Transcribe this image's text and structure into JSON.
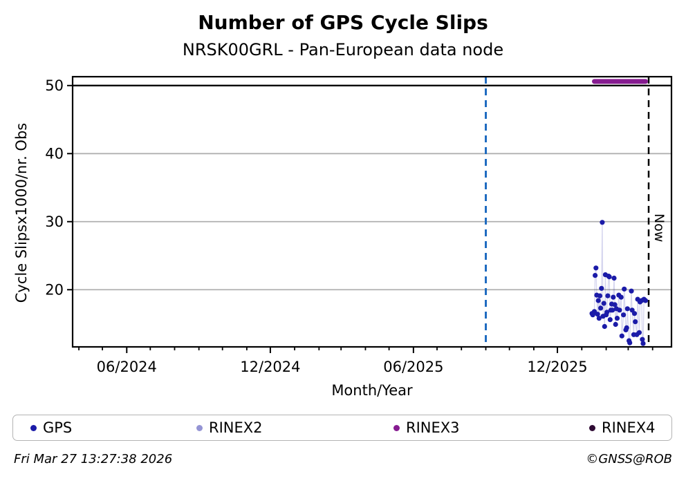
{
  "header": {
    "title": "Number of GPS Cycle Slips",
    "subtitle": "NRSK00GRL - Pan-European data node"
  },
  "footer": {
    "timestamp": "Fri Mar 27 13:27:38 2026",
    "credit": "©GNSS@ROB"
  },
  "legend": {
    "items": [
      {
        "label": "GPS",
        "color": "#1b1ba8"
      },
      {
        "label": "RINEX2",
        "color": "#9494d4"
      },
      {
        "label": "RINEX3",
        "color": "#861b90"
      },
      {
        "label": "RINEX4",
        "color": "#2e0a33"
      }
    ]
  },
  "chart_data": {
    "type": "scatter",
    "title": "Number of GPS Cycle Slips",
    "subtitle": "NRSK00GRL - Pan-European data node",
    "xlabel": "Month/Year",
    "ylabel": "Cycle Slipsx1000/nr. Obs",
    "x_domain": [
      "2024-03-24",
      "2026-04-25"
    ],
    "ylim": [
      11.6,
      51.3
    ],
    "yticks": [
      20,
      30,
      40,
      50
    ],
    "xticks_major": [
      {
        "date": "2024-06-01",
        "label": "06/2024"
      },
      {
        "date": "2024-12-01",
        "label": "12/2024"
      },
      {
        "date": "2025-06-01",
        "label": "06/2025"
      },
      {
        "date": "2025-12-01",
        "label": "12/2025"
      }
    ],
    "xticks_minor_monthly": {
      "start": "2024-04-01",
      "end": "2026-04-01"
    },
    "grid": {
      "horizontal": true,
      "color": "#b0b0b0"
    },
    "reference_line": {
      "value": 50,
      "color": "#000000"
    },
    "vlines": [
      {
        "name": "availability-line",
        "date": "2025-09-01",
        "color": "#1e6bc0",
        "style": "dashed",
        "label": ""
      },
      {
        "name": "now-line",
        "date": "2026-03-27",
        "color": "#000000",
        "style": "dashed",
        "label": "Now"
      }
    ],
    "series": [
      {
        "name": "GPS",
        "color": "#1b1ba8",
        "line_color": "rgba(27,27,168,0.18)",
        "marker": "circle",
        "points": [
          [
            "2026-01-14",
            16.5
          ],
          [
            "2026-01-15",
            16.3
          ],
          [
            "2026-01-17",
            16.8
          ],
          [
            "2026-01-18",
            22.1
          ],
          [
            "2026-01-19",
            23.2
          ],
          [
            "2026-01-20",
            19.2
          ],
          [
            "2026-01-21",
            16.4
          ],
          [
            "2026-01-22",
            18.4
          ],
          [
            "2026-01-23",
            15.8
          ],
          [
            "2026-01-24",
            19.1
          ],
          [
            "2026-01-25",
            17.3
          ],
          [
            "2026-01-26",
            20.2
          ],
          [
            "2026-01-27",
            29.9
          ],
          [
            "2026-01-28",
            16.1
          ],
          [
            "2026-01-29",
            18.0
          ],
          [
            "2026-01-30",
            14.6
          ],
          [
            "2026-01-31",
            22.2
          ],
          [
            "2026-02-01",
            16.3
          ],
          [
            "2026-02-02",
            16.7
          ],
          [
            "2026-02-03",
            19.1
          ],
          [
            "2026-02-04",
            22.0
          ],
          [
            "2026-02-05",
            21.9
          ],
          [
            "2026-02-06",
            15.6
          ],
          [
            "2026-02-07",
            17.0
          ],
          [
            "2026-02-08",
            17.9
          ],
          [
            "2026-02-09",
            17.0
          ],
          [
            "2026-02-10",
            18.9
          ],
          [
            "2026-02-11",
            21.7
          ],
          [
            "2026-02-12",
            17.8
          ],
          [
            "2026-02-13",
            14.9
          ],
          [
            "2026-02-14",
            17.2
          ],
          [
            "2026-02-15",
            15.8
          ],
          [
            "2026-02-17",
            19.2
          ],
          [
            "2026-02-18",
            17.0
          ],
          [
            "2026-02-20",
            18.9
          ],
          [
            "2026-02-21",
            13.2
          ],
          [
            "2026-02-23",
            16.3
          ],
          [
            "2026-02-24",
            20.1
          ],
          [
            "2026-02-26",
            14.1
          ],
          [
            "2026-02-27",
            14.4
          ],
          [
            "2026-02-28",
            17.2
          ],
          [
            "2026-03-02",
            12.5
          ],
          [
            "2026-03-03",
            12.2
          ],
          [
            "2026-03-05",
            19.8
          ],
          [
            "2026-03-06",
            17.0
          ],
          [
            "2026-03-08",
            13.4
          ],
          [
            "2026-03-09",
            16.5
          ],
          [
            "2026-03-10",
            15.3
          ],
          [
            "2026-03-12",
            13.4
          ],
          [
            "2026-03-13",
            18.6
          ],
          [
            "2026-03-15",
            13.7
          ],
          [
            "2026-03-16",
            18.2
          ],
          [
            "2026-03-18",
            18.4
          ],
          [
            "2026-03-19",
            12.7
          ],
          [
            "2026-03-20",
            12.1
          ],
          [
            "2026-03-21",
            18.6
          ],
          [
            "2026-03-23",
            18.4
          ]
        ]
      },
      {
        "name": "RINEX2",
        "color": "#9494d4",
        "points": []
      },
      {
        "name": "RINEX3",
        "color": "#861b90",
        "style": "thick-line",
        "linewidth": 7,
        "value": 50.6,
        "start": "2026-01-17",
        "end": "2026-03-23"
      },
      {
        "name": "RINEX4",
        "color": "#2e0a33",
        "points": []
      }
    ]
  }
}
